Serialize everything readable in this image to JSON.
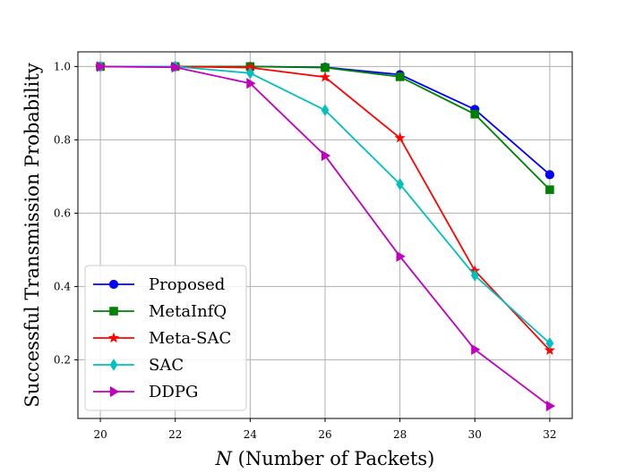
{
  "chart_data": {
    "type": "line",
    "xlabel_var": "N",
    "xlabel_rest": " (Number of Packets)",
    "ylabel": "Successful Transmission Probability",
    "x": [
      20,
      22,
      24,
      26,
      28,
      30,
      32
    ],
    "xticks": [
      "20",
      "22",
      "24",
      "26",
      "28",
      "30",
      "32"
    ],
    "yticks": [
      "0.2",
      "0.4",
      "0.6",
      "0.8",
      "1.0"
    ],
    "ytick_values": [
      0.2,
      0.4,
      0.6,
      0.8,
      1.0
    ],
    "xlim": [
      19.4,
      32.6
    ],
    "ylim": [
      0.04,
      1.04
    ],
    "grid": true,
    "legend_position": "lower-left",
    "series": [
      {
        "name": "Proposed",
        "color": "#0000ff",
        "marker": "circle",
        "values": [
          1.0,
          1.0,
          1.0,
          0.998,
          0.978,
          0.883,
          0.705
        ]
      },
      {
        "name": "MetaInfQ",
        "color": "#008000",
        "marker": "square",
        "values": [
          1.0,
          1.0,
          1.0,
          0.997,
          0.972,
          0.87,
          0.664
        ]
      },
      {
        "name": "Meta-SAC",
        "color": "#ff0000",
        "marker": "star",
        "values": [
          1.0,
          1.0,
          0.997,
          0.971,
          0.805,
          0.443,
          0.226
        ]
      },
      {
        "name": "SAC",
        "color": "#00bfbf",
        "marker": "diamond",
        "values": [
          1.0,
          1.0,
          0.982,
          0.881,
          0.679,
          0.43,
          0.245
        ]
      },
      {
        "name": "DDPG",
        "color": "#bf00bf",
        "marker": "triangle-right",
        "values": [
          1.0,
          0.998,
          0.954,
          0.757,
          0.482,
          0.228,
          0.074
        ]
      }
    ]
  }
}
